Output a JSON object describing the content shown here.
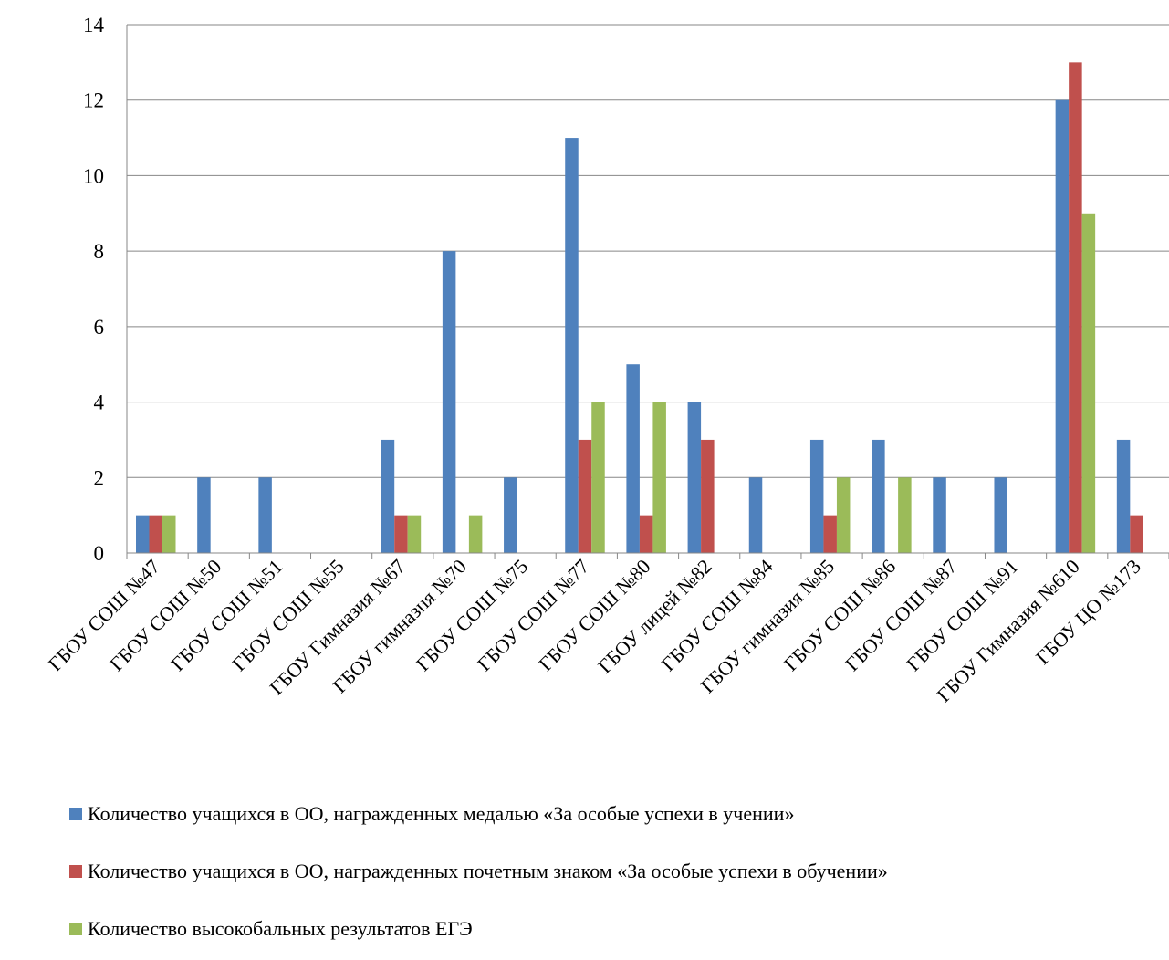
{
  "chart_data": {
    "type": "bar",
    "title": "",
    "xlabel": "",
    "ylabel": "",
    "ylim": [
      0,
      14
    ],
    "yticks": [
      0,
      2,
      4,
      6,
      8,
      10,
      12,
      14
    ],
    "grid": true,
    "legend_position": "bottom",
    "categories": [
      "ГБОУ СОШ №47",
      "ГБОУ СОШ №50",
      "ГБОУ СОШ №51",
      "ГБОУ СОШ №55",
      "ГБОУ Гимназия №67",
      "ГБОУ гимназия №70",
      "ГБОУ СОШ №75",
      "ГБОУ СОШ №77",
      "ГБОУ СОШ №80",
      "ГБОУ лицей №82",
      "ГБОУ СОШ №84",
      "ГБОУ гимназия №85",
      "ГБОУ СОШ №86",
      "ГБОУ СОШ №87",
      "ГБОУ СОШ №91",
      "ГБОУ Гимназия №610",
      "ГБОУ ЦО №173"
    ],
    "series": [
      {
        "name": "Количество учащихся в ОО, награжденных  медалью «За особые успехи в учении»",
        "color": "#4F81BD",
        "values": [
          1,
          2,
          2,
          0,
          3,
          8,
          2,
          11,
          5,
          4,
          2,
          3,
          3,
          2,
          2,
          12,
          3
        ]
      },
      {
        "name": "Количество учащихся в ОО, награжденных почетным знаком «За особые успехи в обучении»",
        "color": "#C0504D",
        "values": [
          1,
          0,
          0,
          0,
          1,
          0,
          0,
          3,
          1,
          3,
          0,
          1,
          0,
          0,
          0,
          13,
          1
        ]
      },
      {
        "name": "Количество высокобальных результатов ЕГЭ",
        "color": "#9BBB59",
        "values": [
          1,
          0,
          0,
          0,
          1,
          1,
          0,
          4,
          4,
          0,
          0,
          2,
          2,
          0,
          0,
          9,
          0
        ]
      }
    ]
  }
}
